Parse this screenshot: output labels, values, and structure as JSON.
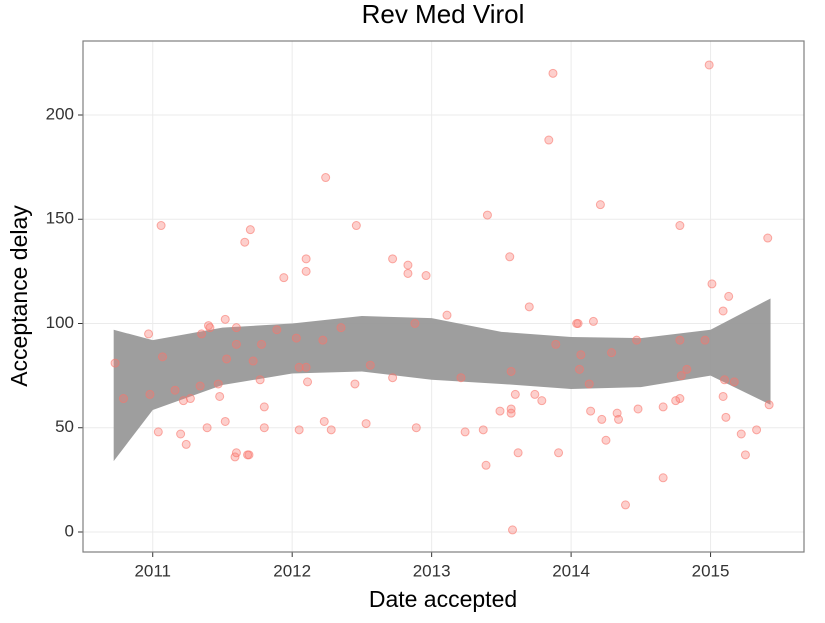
{
  "chart_data": {
    "type": "scatter",
    "title": "Rev Med Virol",
    "xlabel": "Date accepted",
    "ylabel": "Acceptance delay",
    "x": [
      2010.73,
      2010.79,
      2010.97,
      2010.98,
      2011.04,
      2011.06,
      2011.07,
      2011.16,
      2011.2,
      2011.22,
      2011.24,
      2011.27,
      2011.34,
      2011.35,
      2011.39,
      2011.4,
      2011.41,
      2011.47,
      2011.48,
      2011.52,
      2011.52,
      2011.53,
      2011.59,
      2011.6,
      2011.6,
      2011.6,
      2011.66,
      2011.68,
      2011.69,
      2011.7,
      2011.72,
      2011.77,
      2011.78,
      2011.8,
      2011.8,
      2011.89,
      2011.94,
      2012.03,
      2012.05,
      2012.05,
      2012.1,
      2012.1,
      2012.1,
      2012.11,
      2012.22,
      2012.23,
      2012.24,
      2012.28,
      2012.35,
      2012.45,
      2012.46,
      2012.53,
      2012.56,
      2012.72,
      2012.72,
      2012.83,
      2012.83,
      2012.88,
      2012.89,
      2012.96,
      2013.11,
      2013.21,
      2013.24,
      2013.37,
      2013.39,
      2013.4,
      2013.49,
      2013.56,
      2013.57,
      2013.57,
      2013.57,
      2013.58,
      2013.6,
      2013.62,
      2013.7,
      2013.74,
      2013.79,
      2013.84,
      2013.87,
      2013.89,
      2013.91,
      2014.04,
      2014.05,
      2014.06,
      2014.07,
      2014.13,
      2014.14,
      2014.16,
      2014.21,
      2014.22,
      2014.25,
      2014.29,
      2014.33,
      2014.34,
      2014.39,
      2014.47,
      2014.48,
      2014.66,
      2014.66,
      2014.75,
      2014.78,
      2014.78,
      2014.78,
      2014.79,
      2014.83,
      2014.96,
      2014.99,
      2015.01,
      2015.09,
      2015.09,
      2015.1,
      2015.11,
      2015.13,
      2015.17,
      2015.22,
      2015.25,
      2015.33,
      2015.41,
      2015.42
    ],
    "y": [
      81,
      64,
      95,
      66,
      48,
      147,
      84,
      68,
      47,
      63,
      42,
      64,
      70,
      95,
      50,
      99,
      98,
      71,
      65,
      102,
      53,
      83,
      36,
      38,
      98,
      90,
      139,
      37,
      37,
      145,
      82,
      73,
      90,
      60,
      50,
      97,
      122,
      93,
      79,
      49,
      79,
      131,
      125,
      72,
      92,
      53,
      170,
      49,
      98,
      71,
      147,
      52,
      80,
      131,
      74,
      128,
      124,
      100,
      50,
      123,
      104,
      74,
      48,
      49,
      32,
      152,
      58,
      132,
      77,
      59,
      57,
      1,
      66,
      38,
      108,
      66,
      63,
      188,
      220,
      90,
      38,
      100,
      100,
      78,
      85,
      71,
      58,
      101,
      157,
      54,
      44,
      86,
      57,
      54,
      13,
      92,
      59,
      60,
      26,
      63,
      64,
      147,
      92,
      75,
      78,
      92,
      224,
      119,
      106,
      65,
      73,
      55,
      113,
      72,
      47,
      37,
      49,
      141,
      61
    ],
    "color": "#f8766d",
    "band": {
      "x": [
        2010.72,
        2011,
        2011.5,
        2012,
        2012.5,
        2013,
        2013.5,
        2014,
        2014.5,
        2015,
        2015.43
      ],
      "upper": [
        97,
        92,
        98,
        100,
        103.6,
        102.6,
        96,
        93.5,
        93,
        97,
        112
      ],
      "lower": [
        34,
        58.5,
        70.5,
        76,
        77,
        73,
        71,
        68.6,
        69.5,
        75,
        61
      ],
      "color": "#999999"
    },
    "xlim": [
      2010.5,
      2015.67
    ],
    "xticks": [
      2011,
      2012,
      2013,
      2014,
      2015
    ],
    "ylim": [
      -9.6,
      235.5
    ],
    "yticks": [
      0,
      50,
      100,
      150,
      200
    ],
    "grid": true
  }
}
